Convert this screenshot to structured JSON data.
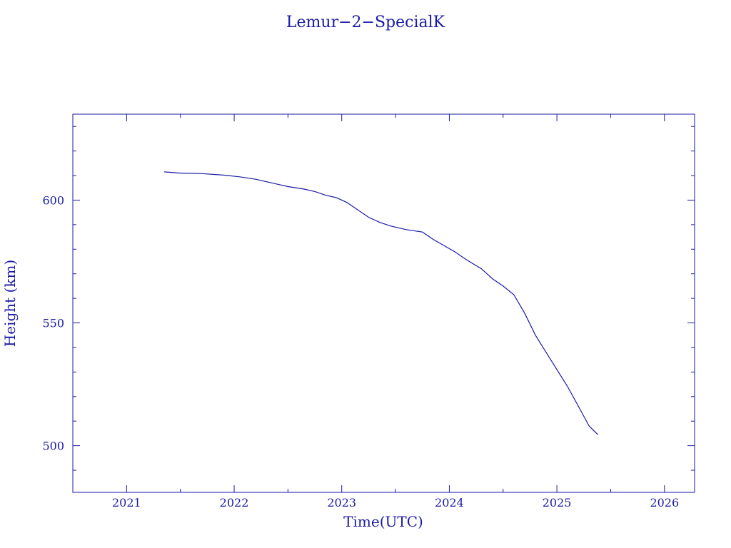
{
  "chart_data": {
    "type": "line",
    "title": "Lemur−2−SpecialK",
    "xlabel": "Time(UTC)",
    "ylabel": "Height (km)",
    "xlim": [
      2020.5,
      2026.28
    ],
    "ylim": [
      481,
      635
    ],
    "x_ticks": [
      2021,
      2022,
      2023,
      2024,
      2025,
      2026
    ],
    "x_tick_labels": [
      "2021",
      "2022",
      "2023",
      "2024",
      "2025",
      "2026"
    ],
    "y_ticks": [
      500,
      550,
      600
    ],
    "y_tick_labels": [
      "500",
      "550",
      "600"
    ],
    "grid": false,
    "color": "#1a1aa6",
    "series": [
      {
        "x": [
          2021.35,
          2021.5,
          2021.7,
          2021.9,
          2022.05,
          2022.2,
          2022.35,
          2022.5,
          2022.65,
          2022.75,
          2022.85,
          2022.95,
          2023.05,
          2023.15,
          2023.25,
          2023.35,
          2023.45,
          2023.6,
          2023.75,
          2023.85,
          2023.95,
          2024.05,
          2024.15,
          2024.3,
          2024.4,
          2024.5,
          2024.6,
          2024.7,
          2024.8,
          2024.9,
          2025.0,
          2025.1,
          2025.2,
          2025.3,
          2025.38
        ],
        "y": [
          611.5,
          611.0,
          610.8,
          610.2,
          609.5,
          608.5,
          607.0,
          605.5,
          604.5,
          603.5,
          602.0,
          601.0,
          599.0,
          596.0,
          593.0,
          591.0,
          589.5,
          588.0,
          587.0,
          584.0,
          581.5,
          579.0,
          576.0,
          572.0,
          568.0,
          565.0,
          561.5,
          554.0,
          545.0,
          538.0,
          531.0,
          524.0,
          516.0,
          508.0,
          504.5
        ]
      }
    ]
  }
}
